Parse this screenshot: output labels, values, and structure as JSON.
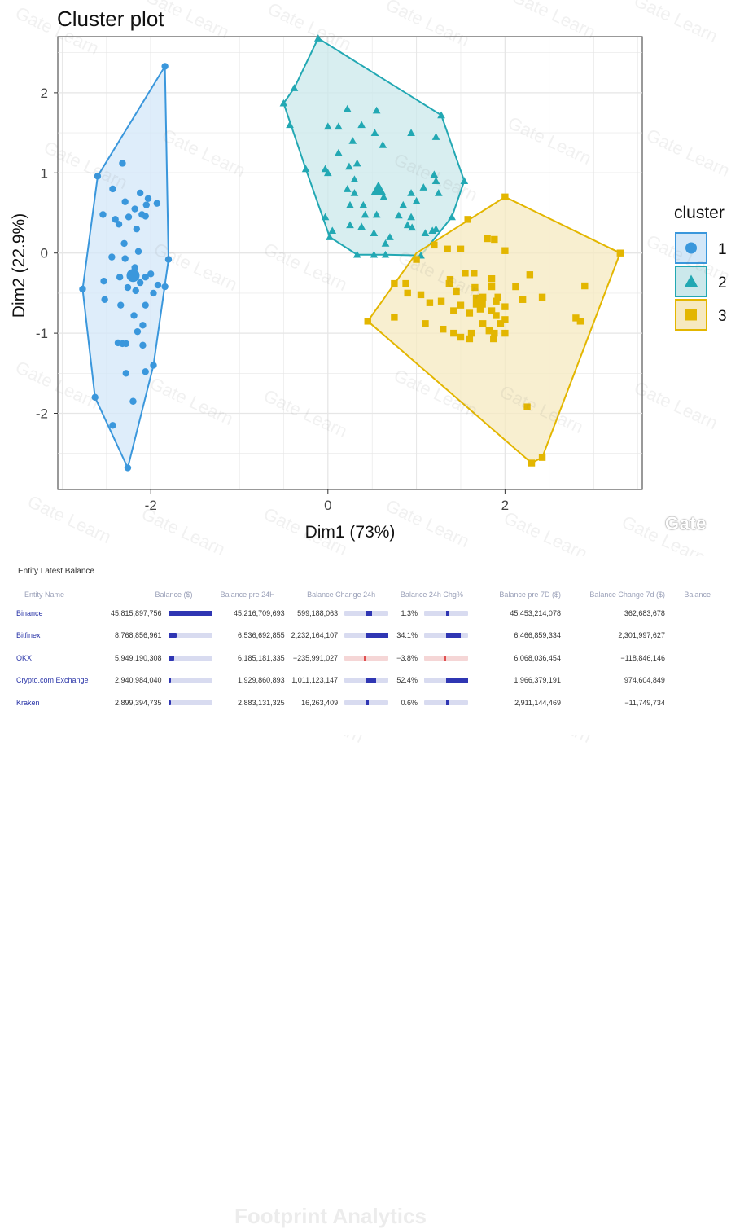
{
  "chart_data": {
    "type": "scatter",
    "title": "Cluster plot",
    "xlabel": "Dim1 (73%)",
    "ylabel": "Dim2 (22.9%)",
    "xlim": [
      -3.05,
      3.55
    ],
    "ylim": [
      -2.95,
      2.7
    ],
    "xticks": [
      -2,
      0,
      2
    ],
    "xtick_labels": [
      "-2",
      "0",
      "2"
    ],
    "yticks": [
      -2,
      -1,
      0,
      1,
      2
    ],
    "ytick_labels": [
      "-2",
      "-1",
      "0",
      "1",
      "2"
    ],
    "legend_title": "cluster",
    "legend_position": "right",
    "series": [
      {
        "name": "1",
        "shape": "circle",
        "color": "#3a97dc",
        "fill": "#d3e7f8",
        "centroid": [
          -2.2,
          -0.28
        ],
        "hull": [
          [
            -2.77,
            -0.45
          ],
          [
            -2.63,
            -1.8
          ],
          [
            -2.26,
            -2.68
          ],
          [
            -1.97,
            -1.4
          ],
          [
            -1.8,
            -0.08
          ],
          [
            -1.84,
            2.33
          ],
          [
            -2.6,
            0.96
          ]
        ],
        "points": [
          [
            -2.6,
            0.96
          ],
          [
            -2.32,
            1.12
          ],
          [
            -2.43,
            0.8
          ],
          [
            -2.12,
            0.75
          ],
          [
            -2.03,
            0.68
          ],
          [
            -2.29,
            0.64
          ],
          [
            -2.05,
            0.6
          ],
          [
            -2.18,
            0.55
          ],
          [
            -1.93,
            0.62
          ],
          [
            -2.54,
            0.48
          ],
          [
            -2.25,
            0.45
          ],
          [
            -2.4,
            0.42
          ],
          [
            -2.1,
            0.48
          ],
          [
            -2.06,
            0.46
          ],
          [
            -2.36,
            0.36
          ],
          [
            -2.16,
            0.3
          ],
          [
            -2.3,
            0.12
          ],
          [
            -2.14,
            0.02
          ],
          [
            -2.44,
            -0.05
          ],
          [
            -2.29,
            -0.07
          ],
          [
            -1.8,
            -0.08
          ],
          [
            -2.18,
            -0.18
          ],
          [
            -2.35,
            -0.3
          ],
          [
            -2.06,
            -0.3
          ],
          [
            -2.12,
            -0.37
          ],
          [
            -2.0,
            -0.26
          ],
          [
            -2.53,
            -0.35
          ],
          [
            -1.92,
            -0.4
          ],
          [
            -2.26,
            -0.43
          ],
          [
            -2.17,
            -0.47
          ],
          [
            -1.97,
            -0.5
          ],
          [
            -1.84,
            -0.42
          ],
          [
            -2.52,
            -0.58
          ],
          [
            -2.34,
            -0.65
          ],
          [
            -2.06,
            -0.65
          ],
          [
            -2.19,
            -0.78
          ],
          [
            -2.09,
            -0.9
          ],
          [
            -2.15,
            -0.98
          ],
          [
            -2.09,
            -1.15
          ],
          [
            -2.32,
            -1.13
          ],
          [
            -2.28,
            -1.13
          ],
          [
            -2.37,
            -1.12
          ],
          [
            -2.28,
            -1.5
          ],
          [
            -2.06,
            -1.48
          ],
          [
            -1.97,
            -1.4
          ],
          [
            -2.2,
            -1.85
          ],
          [
            -2.43,
            -2.15
          ],
          [
            -2.63,
            -1.8
          ],
          [
            -2.77,
            -0.45
          ],
          [
            -2.26,
            -2.68
          ],
          [
            -1.84,
            2.33
          ]
        ]
      },
      {
        "name": "2",
        "shape": "triangle",
        "color": "#22a8b3",
        "fill": "#cbe8eb",
        "centroid": [
          0.57,
          0.8
        ],
        "hull": [
          [
            -0.11,
            2.68
          ],
          [
            1.28,
            1.72
          ],
          [
            1.54,
            0.9
          ],
          [
            1.4,
            0.45
          ],
          [
            1.05,
            -0.03
          ],
          [
            0.65,
            -0.02
          ],
          [
            0.33,
            -0.02
          ],
          [
            0.02,
            0.2
          ],
          [
            -0.25,
            1.05
          ],
          [
            -0.5,
            1.87
          ],
          [
            -0.38,
            2.06
          ]
        ],
        "points": [
          [
            -0.11,
            2.68
          ],
          [
            -0.38,
            2.06
          ],
          [
            -0.5,
            1.87
          ],
          [
            -0.43,
            1.6
          ],
          [
            0.22,
            1.8
          ],
          [
            0.55,
            1.78
          ],
          [
            0.0,
            1.58
          ],
          [
            0.12,
            1.58
          ],
          [
            0.38,
            1.6
          ],
          [
            0.53,
            1.5
          ],
          [
            0.62,
            1.35
          ],
          [
            0.94,
            1.5
          ],
          [
            1.28,
            1.72
          ],
          [
            1.22,
            1.45
          ],
          [
            0.28,
            1.4
          ],
          [
            0.12,
            1.25
          ],
          [
            0.33,
            1.12
          ],
          [
            0.24,
            1.08
          ],
          [
            -0.03,
            1.05
          ],
          [
            -0.25,
            1.05
          ],
          [
            0.0,
            1.0
          ],
          [
            0.3,
            0.92
          ],
          [
            0.22,
            0.8
          ],
          [
            0.3,
            0.75
          ],
          [
            1.2,
            0.98
          ],
          [
            1.22,
            0.9
          ],
          [
            1.54,
            0.9
          ],
          [
            0.94,
            0.75
          ],
          [
            1.08,
            0.82
          ],
          [
            1.25,
            0.75
          ],
          [
            0.63,
            0.7
          ],
          [
            0.25,
            0.6
          ],
          [
            0.4,
            0.6
          ],
          [
            1.0,
            0.65
          ],
          [
            0.85,
            0.6
          ],
          [
            -0.03,
            0.45
          ],
          [
            0.42,
            0.48
          ],
          [
            0.55,
            0.48
          ],
          [
            0.8,
            0.47
          ],
          [
            0.94,
            0.45
          ],
          [
            1.4,
            0.45
          ],
          [
            0.9,
            0.35
          ],
          [
            0.25,
            0.35
          ],
          [
            0.38,
            0.33
          ],
          [
            0.95,
            0.32
          ],
          [
            1.22,
            0.3
          ],
          [
            0.05,
            0.28
          ],
          [
            0.52,
            0.25
          ],
          [
            0.7,
            0.2
          ],
          [
            1.1,
            0.25
          ],
          [
            1.18,
            0.28
          ],
          [
            0.02,
            0.2
          ],
          [
            0.65,
            0.12
          ],
          [
            0.52,
            -0.02
          ],
          [
            1.05,
            -0.03
          ],
          [
            0.33,
            -0.02
          ],
          [
            0.65,
            -0.02
          ]
        ]
      },
      {
        "name": "3",
        "shape": "square",
        "color": "#e3b600",
        "fill": "#f6e9c0",
        "centroid": [
          1.71,
          -0.6
        ],
        "hull": [
          [
            2.0,
            0.7
          ],
          [
            3.3,
            0.0
          ],
          [
            2.42,
            -2.55
          ],
          [
            2.3,
            -2.62
          ],
          [
            0.45,
            -0.85
          ],
          [
            1.0,
            0.0
          ]
        ],
        "points": [
          [
            2.0,
            0.7
          ],
          [
            3.3,
            0.0
          ],
          [
            1.58,
            0.42
          ],
          [
            1.8,
            0.18
          ],
          [
            1.88,
            0.17
          ],
          [
            1.2,
            0.1
          ],
          [
            1.35,
            0.05
          ],
          [
            1.5,
            0.05
          ],
          [
            2.0,
            0.03
          ],
          [
            1.0,
            -0.08
          ],
          [
            1.65,
            -0.25
          ],
          [
            1.55,
            -0.25
          ],
          [
            2.28,
            -0.27
          ],
          [
            1.38,
            -0.33
          ],
          [
            1.37,
            -0.38
          ],
          [
            1.85,
            -0.32
          ],
          [
            1.85,
            -0.42
          ],
          [
            2.12,
            -0.42
          ],
          [
            0.75,
            -0.38
          ],
          [
            0.9,
            -0.5
          ],
          [
            1.05,
            -0.52
          ],
          [
            1.45,
            -0.48
          ],
          [
            1.66,
            -0.43
          ],
          [
            2.9,
            -0.41
          ],
          [
            2.42,
            -0.55
          ],
          [
            1.75,
            -0.55
          ],
          [
            1.92,
            -0.55
          ],
          [
            2.2,
            -0.58
          ],
          [
            0.88,
            -0.38
          ],
          [
            1.28,
            -0.6
          ],
          [
            1.9,
            -0.6
          ],
          [
            2.0,
            -0.67
          ],
          [
            2.8,
            -0.81
          ],
          [
            2.85,
            -0.85
          ],
          [
            0.75,
            -0.8
          ],
          [
            1.6,
            -0.75
          ],
          [
            1.72,
            -0.7
          ],
          [
            1.85,
            -0.72
          ],
          [
            1.9,
            -0.78
          ],
          [
            2.0,
            -0.83
          ],
          [
            1.42,
            -0.72
          ],
          [
            1.5,
            -0.65
          ],
          [
            1.15,
            -0.62
          ],
          [
            0.45,
            -0.85
          ],
          [
            1.1,
            -0.88
          ],
          [
            1.75,
            -0.88
          ],
          [
            1.95,
            -0.88
          ],
          [
            1.3,
            -0.95
          ],
          [
            1.42,
            -1.0
          ],
          [
            1.62,
            -1.0
          ],
          [
            1.82,
            -0.97
          ],
          [
            1.88,
            -1.0
          ],
          [
            2.0,
            -1.0
          ],
          [
            1.5,
            -1.05
          ],
          [
            1.6,
            -1.07
          ],
          [
            1.87,
            -1.07
          ],
          [
            2.25,
            -1.92
          ],
          [
            2.42,
            -2.55
          ],
          [
            2.3,
            -2.62
          ]
        ]
      }
    ]
  },
  "watermark": {
    "text": "Gate Learn",
    "logo": "Gate"
  },
  "table": {
    "title": "Entity Latest Balance",
    "headers": [
      "Entity Name",
      "Balance ($)",
      "Balance pre 24H",
      "Balance Change 24h",
      "Balance 24h Chg%",
      "Balance pre 7D ($)",
      "Balance Change 7d ($)",
      "Balance"
    ],
    "rows": [
      {
        "name": "Binance",
        "balance": "45,815,897,756",
        "balance_value": 45815897756,
        "pre24": "45,216,709,693",
        "chg24": "599,188,063",
        "chg24_value": 599188063,
        "pct24": "1.3%",
        "pct24_value": 1.3,
        "pre7d": "45,453,214,078",
        "chg7d": "362,683,678"
      },
      {
        "name": "Bitfinex",
        "balance": "8,768,856,961",
        "balance_value": 8768856961,
        "pre24": "6,536,692,855",
        "chg24": "2,232,164,107",
        "chg24_value": 2232164107,
        "pct24": "34.1%",
        "pct24_value": 34.1,
        "pre7d": "6,466,859,334",
        "chg7d": "2,301,997,627"
      },
      {
        "name": "OKX",
        "balance": "5,949,190,308",
        "balance_value": 5949190308,
        "pre24": "6,185,181,335",
        "chg24": "−235,991,027",
        "chg24_value": -235991027,
        "pct24": "−3.8%",
        "pct24_value": -3.8,
        "pre7d": "6,068,036,454",
        "chg7d": "−118,846,146"
      },
      {
        "name": "Crypto.com Exchange",
        "balance": "2,940,984,040",
        "balance_value": 2940984040,
        "pre24": "1,929,860,893",
        "chg24": "1,011,123,147",
        "chg24_value": 1011123147,
        "pct24": "52.4%",
        "pct24_value": 52.4,
        "pre7d": "1,966,379,191",
        "chg7d": "974,604,849"
      },
      {
        "name": "Kraken",
        "balance": "2,899,394,735",
        "balance_value": 2899394735,
        "pre24": "2,883,131,325",
        "chg24": "16,263,409",
        "chg24_value": 16263409,
        "pct24": "0.6%",
        "pct24_value": 0.6,
        "pre7d": "2,911,144,469",
        "chg7d": "−11,749,734"
      }
    ]
  },
  "footprint_watermark": "Footprint Analytics"
}
